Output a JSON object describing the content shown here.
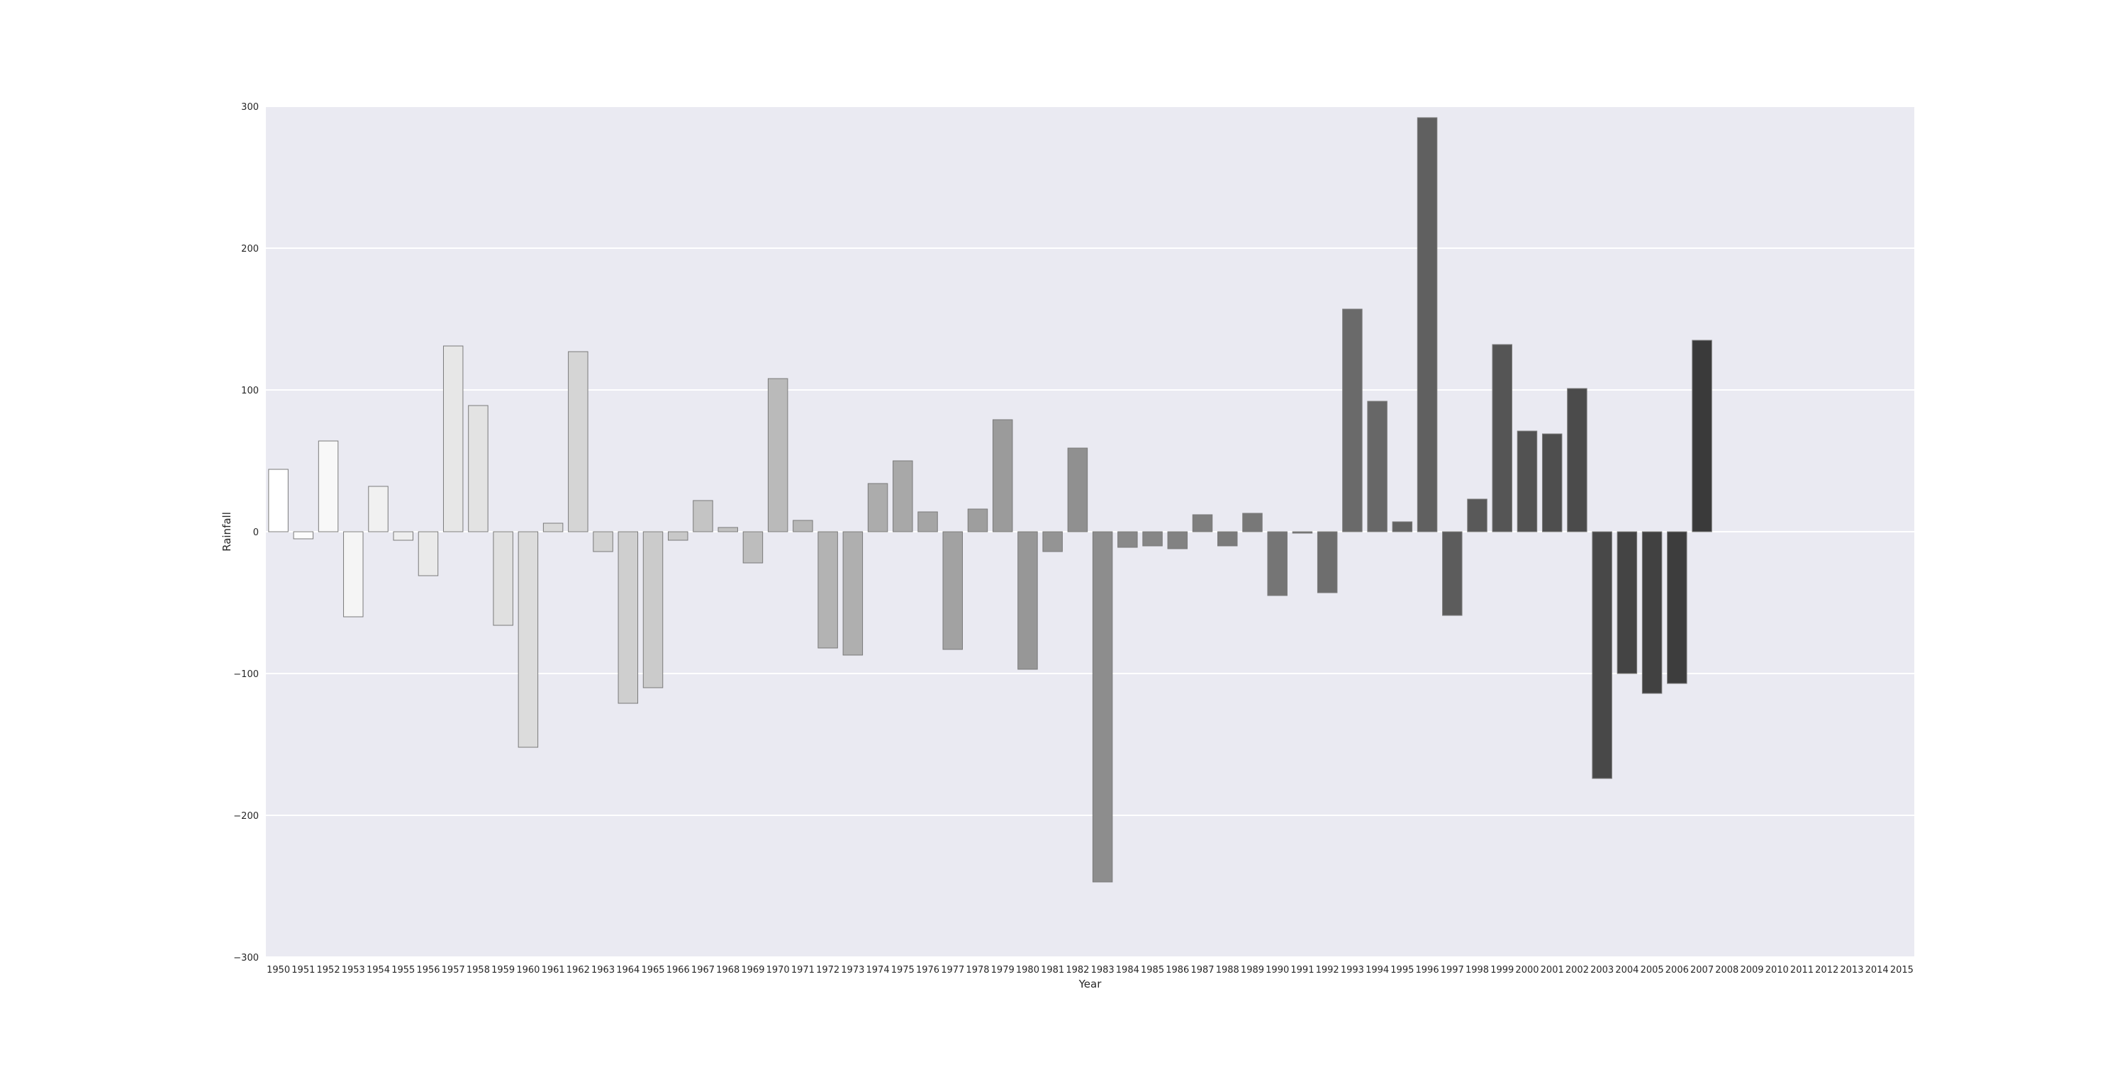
{
  "chart_data": {
    "type": "bar",
    "title": "",
    "xlabel": "Year",
    "ylabel": "Rainfall",
    "ylim": [
      -300,
      300
    ],
    "yticks": [
      300,
      200,
      100,
      0,
      -100,
      -200,
      -300
    ],
    "ytick_labels": [
      "300",
      "200",
      "100",
      "0",
      "−100",
      "−200",
      "−300"
    ],
    "grid": true,
    "legend": "none",
    "background_color": "#eaeaf2",
    "grid_color": "#ffffff",
    "bar_edge_color": "#7a7a7a",
    "color_map": "white-to-black gradient by year",
    "categories": [
      "1950",
      "1951",
      "1952",
      "1953",
      "1954",
      "1955",
      "1956",
      "1957",
      "1958",
      "1959",
      "1960",
      "1961",
      "1962",
      "1963",
      "1964",
      "1965",
      "1966",
      "1967",
      "1968",
      "1969",
      "1970",
      "1971",
      "1972",
      "1973",
      "1974",
      "1975",
      "1976",
      "1977",
      "1978",
      "1979",
      "1980",
      "1981",
      "1982",
      "1983",
      "1984",
      "1985",
      "1986",
      "1987",
      "1988",
      "1989",
      "1990",
      "1991",
      "1992",
      "1993",
      "1994",
      "1995",
      "1996",
      "1997",
      "1998",
      "1999",
      "2000",
      "2001",
      "2002",
      "2003",
      "2004",
      "2005",
      "2006",
      "2007",
      "2008",
      "2009",
      "2010",
      "2011",
      "2012",
      "2013",
      "2014",
      "2015"
    ],
    "values": [
      44,
      -5,
      64,
      -60,
      32,
      -6,
      -31,
      131,
      89,
      -66,
      -152,
      6,
      127,
      -14,
      -121,
      -110,
      -6,
      22,
      3,
      -22,
      108,
      8,
      -82,
      -87,
      34,
      50,
      14,
      -83,
      16,
      79,
      -97,
      -14,
      59,
      -247,
      -11,
      -10,
      -12,
      12,
      -10,
      13,
      -45,
      -1,
      -43,
      157,
      92,
      7,
      292,
      -59,
      23,
      132,
      71,
      69,
      101,
      -174,
      -100,
      -114,
      -107,
      135,
      null,
      null,
      null,
      null,
      null,
      null,
      null,
      null
    ]
  }
}
